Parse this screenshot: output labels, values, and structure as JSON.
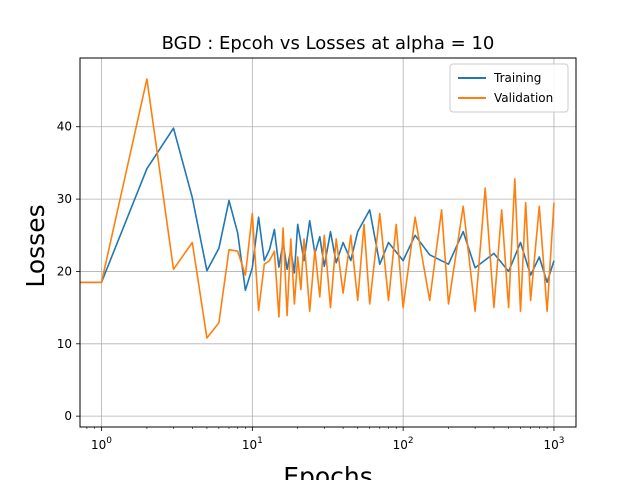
{
  "chart_data": {
    "type": "line",
    "title": "BGD : Epcoh vs Losses at alpha = 10",
    "xlabel": "Epochs",
    "ylabel": "Losses",
    "xscale": "log",
    "xlim": [
      0.72,
      1400
    ],
    "ylim": [
      -1.5,
      49.5
    ],
    "xtick_labels": [
      {
        "value": 1,
        "base": "10",
        "exp": "0"
      },
      {
        "value": 10,
        "base": "10",
        "exp": "1"
      },
      {
        "value": 100,
        "base": "10",
        "exp": "2"
      },
      {
        "value": 1000,
        "base": "10",
        "exp": "3"
      }
    ],
    "ytick_labels": [
      {
        "value": 0,
        "label": "0"
      },
      {
        "value": 10,
        "label": "10"
      },
      {
        "value": 20,
        "label": "20"
      },
      {
        "value": 30,
        "label": "30"
      },
      {
        "value": 40,
        "label": "40"
      }
    ],
    "grid": true,
    "legend_position": "top-right",
    "series": [
      {
        "name": "Training",
        "color": "#1f77b4",
        "x": [
          0,
          1,
          2,
          3,
          4,
          5,
          6,
          7,
          8,
          9,
          10,
          11,
          12,
          13,
          14,
          15,
          16,
          17,
          18,
          19,
          20,
          22,
          24,
          26,
          28,
          30,
          33,
          36,
          40,
          45,
          50,
          60,
          70,
          80,
          100,
          120,
          150,
          200,
          250,
          300,
          400,
          500,
          600,
          700,
          800,
          900,
          1000
        ],
        "y": [
          18.5,
          18.5,
          34.2,
          39.8,
          30.2,
          20.1,
          23.2,
          29.8,
          25.3,
          17.4,
          20.5,
          27.5,
          21.5,
          23.0,
          25.8,
          20.6,
          24.0,
          20.3,
          23.0,
          19.8,
          26.5,
          21.5,
          27.0,
          22.5,
          24.8,
          20.7,
          25.5,
          21.2,
          24.0,
          21.5,
          25.5,
          28.5,
          21.0,
          24.0,
          21.5,
          25.0,
          22.3,
          21.0,
          25.5,
          20.5,
          22.5,
          20.0,
          24.0,
          19.5,
          22.0,
          18.5,
          21.5
        ]
      },
      {
        "name": "Validation",
        "color": "#ff7f0e",
        "x": [
          0,
          1,
          2,
          3,
          4,
          5,
          6,
          7,
          8,
          9,
          10,
          11,
          12,
          13,
          14,
          15,
          16,
          17,
          18,
          19,
          20,
          21,
          22,
          24,
          26,
          28,
          30,
          33,
          36,
          40,
          45,
          50,
          55,
          60,
          70,
          80,
          90,
          100,
          120,
          150,
          180,
          200,
          250,
          300,
          350,
          400,
          450,
          500,
          550,
          600,
          650,
          700,
          800,
          900,
          1000
        ],
        "y": [
          18.5,
          18.5,
          46.6,
          20.3,
          24.0,
          10.8,
          12.9,
          23.0,
          22.8,
          19.5,
          28.0,
          14.6,
          21.0,
          21.5,
          22.8,
          13.7,
          26.0,
          13.9,
          24.5,
          15.5,
          22.0,
          17.5,
          24.5,
          14.5,
          23.0,
          16.5,
          25.0,
          15.0,
          24.5,
          17.0,
          25.0,
          16.0,
          26.5,
          15.5,
          28.0,
          16.0,
          26.5,
          15.0,
          27.5,
          16.0,
          28.5,
          15.5,
          29.0,
          14.5,
          31.5,
          15.0,
          28.5,
          15.0,
          32.8,
          14.5,
          29.5,
          16.0,
          29.0,
          14.5,
          29.5
        ]
      }
    ]
  }
}
